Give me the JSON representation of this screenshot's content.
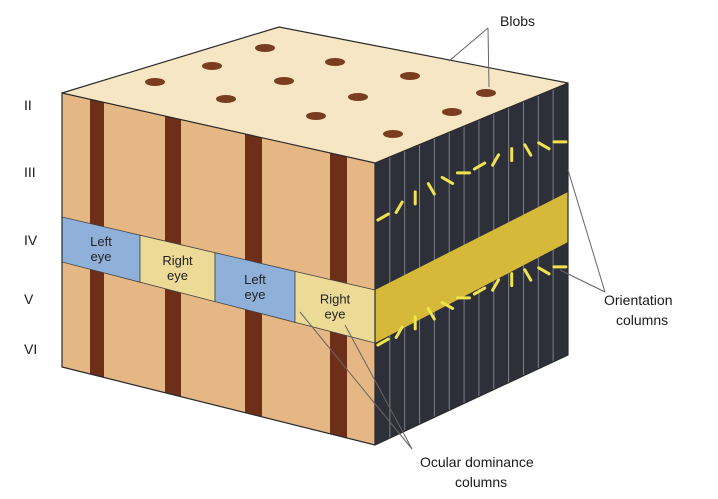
{
  "layers": [
    "II",
    "III",
    "IV",
    "V",
    "VI"
  ],
  "labels": {
    "blobs": "Blobs",
    "orientation": [
      "Orientation",
      "columns"
    ],
    "ocular": [
      "Ocular dominance",
      "columns"
    ]
  },
  "eye_columns": [
    {
      "lines": [
        "Left",
        "eye"
      ],
      "type": "left"
    },
    {
      "lines": [
        "Right",
        "eye"
      ],
      "type": "right"
    },
    {
      "lines": [
        "Left",
        "eye"
      ],
      "type": "left"
    },
    {
      "lines": [
        "Right",
        "eye"
      ],
      "type": "right"
    }
  ],
  "colors": {
    "front_face": "#e5b784",
    "top_face": "#f7e6c4",
    "side_face": "#2d3039",
    "blob": "#7a3d1f",
    "cortical_column": "#6e2f18",
    "left_eye": "#8fb1d9",
    "right_eye": "#ecdb97",
    "side_band": "#d7b93a",
    "orientation_dash": "#f0e34c",
    "callout_line": "#666666"
  }
}
